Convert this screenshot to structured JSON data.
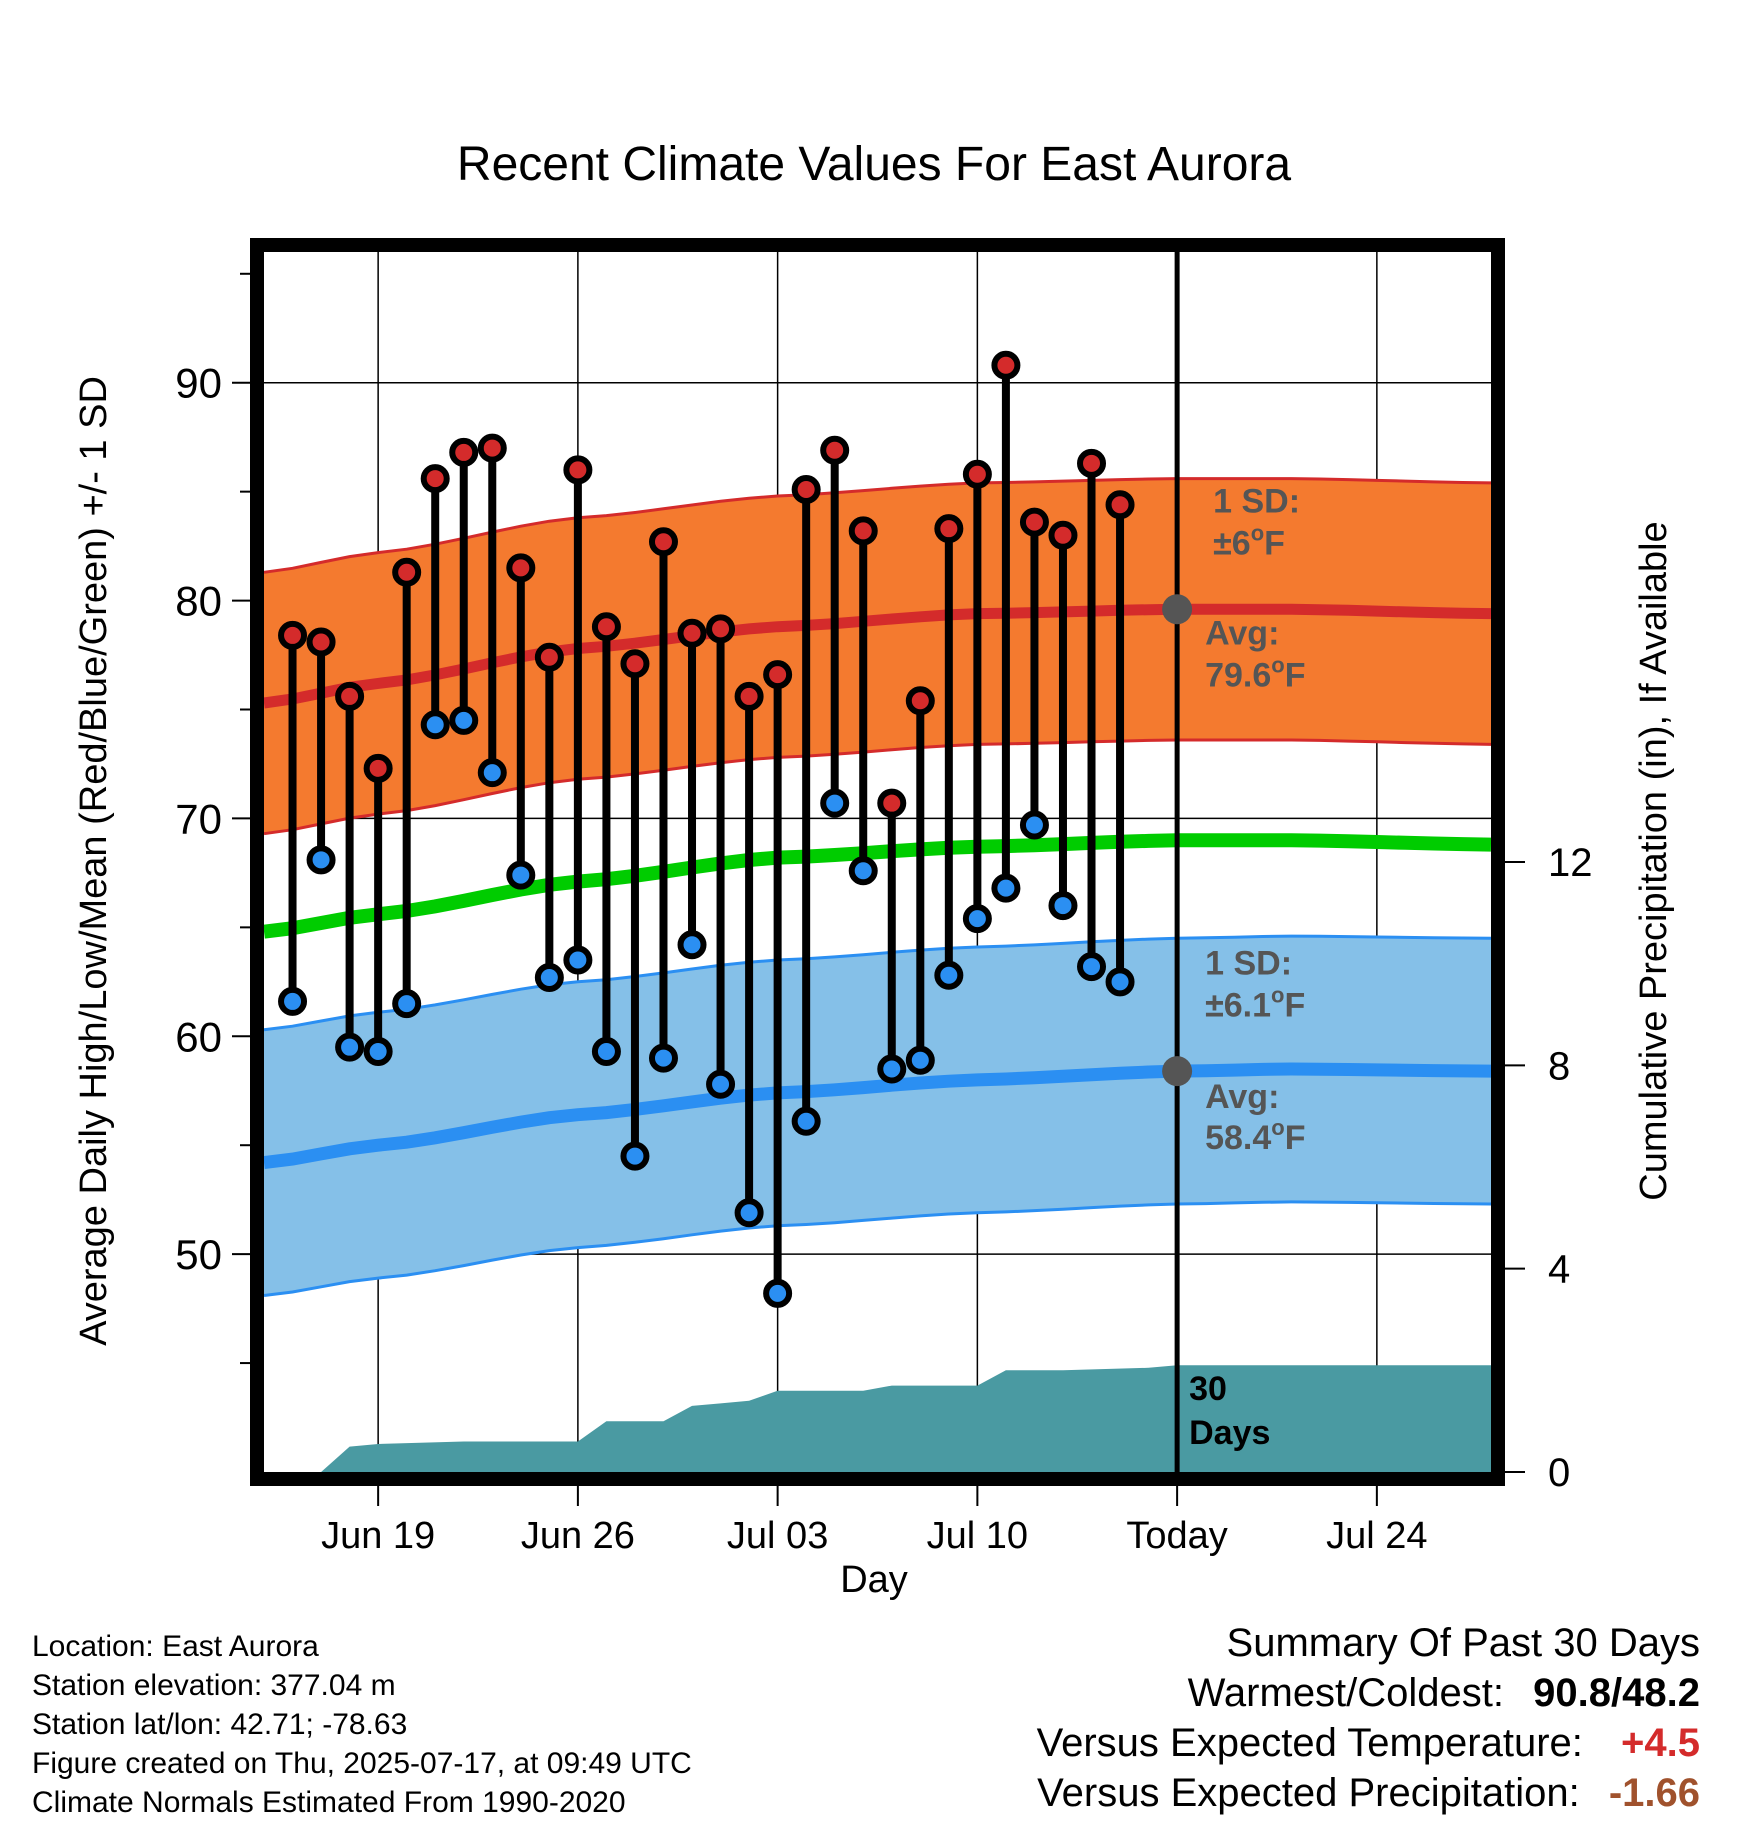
{
  "chart_data": {
    "type": "line",
    "title": "Recent Climate Values For East Aurora",
    "xlabel": "Day",
    "ylabel": "Average Daily High/Low/Mean (Red/Blue/Green) +/- 1 SD",
    "y2label": "Cumulative Precipitation (in), If Available",
    "ylim": [
      40,
      96
    ],
    "y2lim": [
      0,
      24
    ],
    "x_range": [
      "2025-06-15",
      "2025-07-28"
    ],
    "xticks": [
      {
        "date": "2025-06-19",
        "label": "Jun 19"
      },
      {
        "date": "2025-06-26",
        "label": "Jun 26"
      },
      {
        "date": "2025-07-03",
        "label": "Jul 03"
      },
      {
        "date": "2025-07-10",
        "label": "Jul 10"
      },
      {
        "date": "2025-07-17",
        "label": "Today"
      },
      {
        "date": "2025-07-24",
        "label": "Jul 24"
      }
    ],
    "yticks": [
      "50",
      "60",
      "70",
      "80",
      "90"
    ],
    "y2ticks": [
      "0",
      "4",
      "8",
      "12"
    ],
    "grid": true,
    "today": "2025-07-17",
    "normals": {
      "x": [
        "2025-06-15",
        "2025-06-19",
        "2025-06-26",
        "2025-07-03",
        "2025-07-10",
        "2025-07-17",
        "2025-07-21",
        "2025-07-28"
      ],
      "high_mean": [
        75.3,
        76.2,
        77.8,
        78.8,
        79.4,
        79.6,
        79.6,
        79.4
      ],
      "high_sd": 6,
      "low_mean": [
        54.2,
        55.0,
        56.4,
        57.4,
        58.0,
        58.4,
        58.5,
        58.4
      ],
      "low_sd": 6.1,
      "mean": [
        64.8,
        65.6,
        67.1,
        68.2,
        68.7,
        69.0,
        69.0,
        68.8
      ]
    },
    "series": [
      {
        "name": "High",
        "color": "#d42b2b",
        "x": [
          "2025-06-16",
          "2025-06-17",
          "2025-06-18",
          "2025-06-19",
          "2025-06-20",
          "2025-06-21",
          "2025-06-22",
          "2025-06-23",
          "2025-06-24",
          "2025-06-25",
          "2025-06-26",
          "2025-06-27",
          "2025-06-28",
          "2025-06-29",
          "2025-06-30",
          "2025-07-01",
          "2025-07-02",
          "2025-07-03",
          "2025-07-04",
          "2025-07-05",
          "2025-07-06",
          "2025-07-07",
          "2025-07-08",
          "2025-07-09",
          "2025-07-10",
          "2025-07-11",
          "2025-07-12",
          "2025-07-13",
          "2025-07-14",
          "2025-07-15",
          "2025-07-16"
        ],
        "values": [
          78.4,
          78.1,
          75.6,
          72.3,
          81.3,
          85.6,
          86.8,
          87.0,
          81.5,
          77.4,
          86.0,
          78.8,
          77.1,
          82.7,
          78.5,
          78.7,
          75.6,
          76.6,
          85.1,
          86.9,
          83.2,
          70.7,
          75.4,
          83.3,
          85.8,
          90.8,
          83.6,
          83.0,
          86.3,
          84.4,
          null
        ]
      },
      {
        "name": "Low",
        "color": "#2b8ff2",
        "x": [
          "2025-06-16",
          "2025-06-17",
          "2025-06-18",
          "2025-06-19",
          "2025-06-20",
          "2025-06-21",
          "2025-06-22",
          "2025-06-23",
          "2025-06-24",
          "2025-06-25",
          "2025-06-26",
          "2025-06-27",
          "2025-06-28",
          "2025-06-29",
          "2025-06-30",
          "2025-07-01",
          "2025-07-02",
          "2025-07-03",
          "2025-07-04",
          "2025-07-05",
          "2025-07-06",
          "2025-07-07",
          "2025-07-08",
          "2025-07-09",
          "2025-07-10",
          "2025-07-11",
          "2025-07-12",
          "2025-07-13",
          "2025-07-14",
          "2025-07-15",
          "2025-07-16"
        ],
        "values": [
          61.6,
          68.1,
          59.5,
          59.3,
          61.5,
          74.3,
          74.5,
          72.1,
          67.4,
          62.7,
          63.5,
          59.3,
          54.5,
          59.0,
          64.2,
          57.8,
          51.9,
          48.2,
          56.1,
          70.7,
          67.6,
          58.5,
          58.9,
          62.8,
          65.4,
          66.8,
          69.7,
          66.0,
          63.2,
          62.5,
          null
        ]
      }
    ],
    "precip_cumulative": {
      "x": [
        "2025-06-15",
        "2025-06-17",
        "2025-06-18",
        "2025-06-19",
        "2025-06-22",
        "2025-06-26",
        "2025-06-27",
        "2025-06-29",
        "2025-06-30",
        "2025-07-01",
        "2025-07-02",
        "2025-07-03",
        "2025-07-06",
        "2025-07-07",
        "2025-07-10",
        "2025-07-11",
        "2025-07-13",
        "2025-07-16",
        "2025-07-17",
        "2025-07-28"
      ],
      "values": [
        0,
        0,
        0.5,
        0.55,
        0.6,
        0.6,
        1.0,
        1.0,
        1.3,
        1.35,
        1.4,
        1.6,
        1.6,
        1.7,
        1.7,
        2.0,
        2.0,
        2.05,
        2.1,
        2.1
      ],
      "label_line1": "30",
      "label_line2": "Days"
    },
    "annotations": {
      "high_sd_label": "1 SD:",
      "high_sd_value": "±6",
      "high_avg_label": "Avg:",
      "high_avg_value": "79.6",
      "low_sd_label": "1 SD:",
      "low_sd_value": "±6.1",
      "low_avg_label": "Avg:",
      "low_avg_value": "58.4",
      "degree_sign": "o",
      "unit": "F",
      "avg_high": 79.6,
      "avg_low": 58.4
    },
    "colors": {
      "high_band": "#f47a2f",
      "high_band_edge": "#d42b2b",
      "high_mean_line": "#d42b2b",
      "low_band": "#85c0e8",
      "low_band_edge": "#2b8ff2",
      "low_mean_line": "#2b8ff2",
      "mean_line": "#00cc00",
      "precip": "#4a9aa2",
      "annotation": "#555555",
      "positive": "#d42b2b",
      "precip_anomaly": "#a0522d"
    }
  },
  "footer": {
    "location": "Location: East Aurora",
    "elevation": "Station elevation: 377.04 m",
    "latlon": "Station lat/lon: 42.71; -78.63",
    "created": "Figure created on Thu, 2025-07-17, at 09:49 UTC",
    "normals": "Climate Normals Estimated From 1990-2020"
  },
  "summary": {
    "heading": "Summary Of Past 30 Days",
    "warm_cold_label": "Warmest/Coldest:",
    "warm_value": "90.8",
    "slash": "/",
    "cold_value": "48.2",
    "temp_label": "Versus Expected Temperature:",
    "temp_value": "+4.5",
    "precip_label": "Versus Expected Precipitation:",
    "precip_value": "-1.66"
  }
}
